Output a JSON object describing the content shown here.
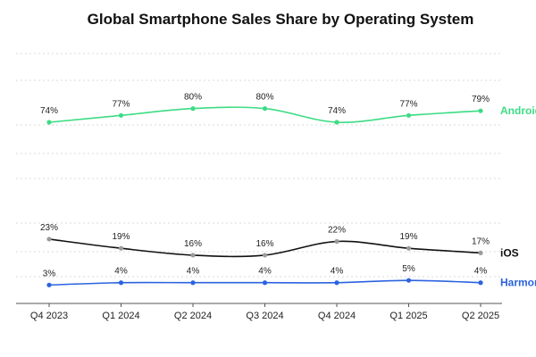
{
  "chart_data": {
    "type": "line",
    "title": "Global Smartphone Sales Share by Operating System",
    "xlabel": "",
    "ylabel": "",
    "ylim": [
      0,
      100
    ],
    "categories": [
      "Q4 2023",
      "Q1 2024",
      "Q2 2024",
      "Q3 2024",
      "Q4 2024",
      "Q1 2025",
      "Q2 2025"
    ],
    "series": [
      {
        "name": "Android",
        "color": "#3ddc84",
        "values": [
          74,
          77,
          80,
          80,
          74,
          77,
          79
        ],
        "labels": [
          "74%",
          "77%",
          "80%",
          "80%",
          "74%",
          "77%",
          "79%"
        ]
      },
      {
        "name": "iOS",
        "color": "#111111",
        "values": [
          23,
          19,
          16,
          16,
          22,
          19,
          17
        ],
        "labels": [
          "23%",
          "19%",
          "16%",
          "16%",
          "22%",
          "19%",
          "17%"
        ]
      },
      {
        "name": "HarmonyOS",
        "color": "#2b63e0",
        "values": [
          3,
          4,
          4,
          4,
          4,
          5,
          4
        ],
        "labels": [
          "3%",
          "4%",
          "4%",
          "4%",
          "4%",
          "5%",
          "4%"
        ]
      }
    ],
    "legend": "right-inline"
  }
}
